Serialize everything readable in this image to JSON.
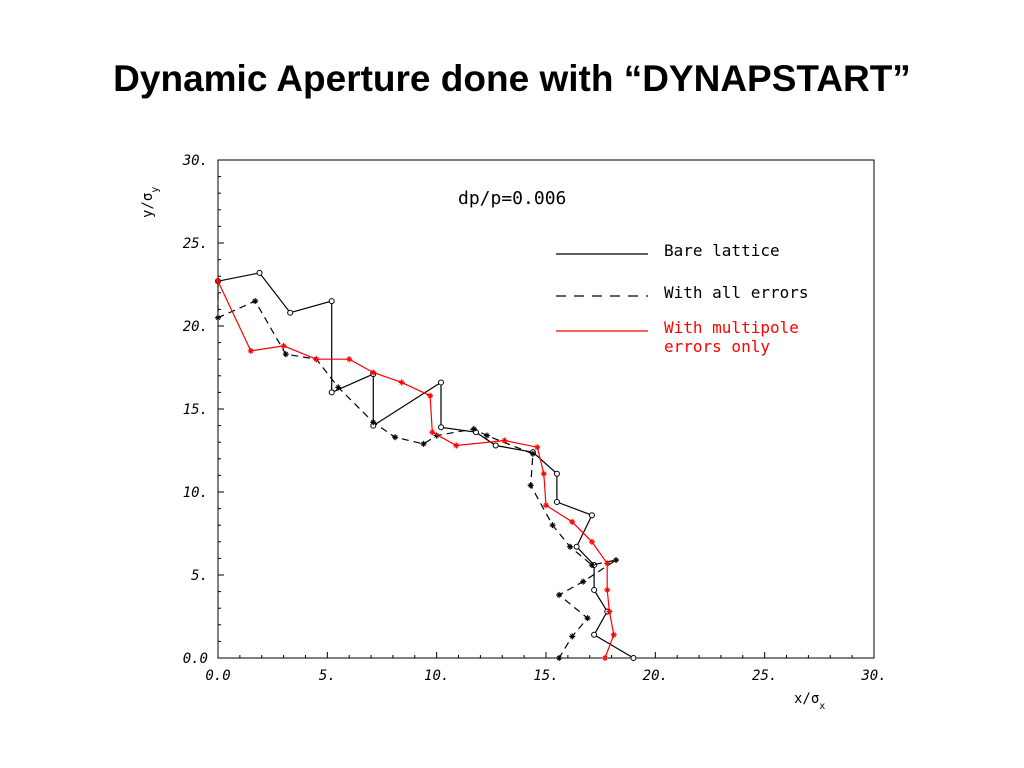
{
  "slide": {
    "title": "Dynamic Aperture done with “DYNAPSTART”"
  },
  "colors": {
    "bare": "#000000",
    "errors": "#000000",
    "multipole": "#ff0000",
    "axes": "#000000"
  },
  "chart_data": {
    "type": "line",
    "title": "",
    "annotation": "dp/p=0.006",
    "xlabel": "x/σx",
    "ylabel": "y/σy",
    "xlim": [
      0,
      30
    ],
    "ylim": [
      0,
      30
    ],
    "x_ticks": [
      0,
      5,
      10,
      15,
      20,
      25,
      30
    ],
    "x_tick_labels": [
      "0.0",
      "5.",
      "10.",
      "15.",
      "20.",
      "25.",
      "30."
    ],
    "y_ticks": [
      0,
      5,
      10,
      15,
      20,
      25,
      30
    ],
    "y_tick_labels": [
      "0.0",
      "5.",
      "10.",
      "15.",
      "20.",
      "25.",
      "30."
    ],
    "grid": false,
    "legend_position": "top-right",
    "series": [
      {
        "name": "Bare lattice",
        "style": "solid",
        "color": "#000000",
        "marker": "circle",
        "points": [
          [
            0.0,
            22.7
          ],
          [
            1.9,
            23.2
          ],
          [
            3.3,
            20.8
          ],
          [
            5.2,
            21.5
          ],
          [
            5.2,
            16.0
          ],
          [
            7.1,
            17.1
          ],
          [
            7.1,
            14.0
          ],
          [
            10.2,
            16.6
          ],
          [
            10.2,
            13.9
          ],
          [
            11.8,
            13.6
          ],
          [
            12.7,
            12.8
          ],
          [
            14.4,
            12.4
          ],
          [
            15.5,
            11.1
          ],
          [
            15.5,
            9.4
          ],
          [
            17.1,
            8.6
          ],
          [
            16.4,
            6.7
          ],
          [
            17.2,
            5.6
          ],
          [
            17.2,
            4.1
          ],
          [
            17.8,
            2.8
          ],
          [
            17.2,
            1.4
          ],
          [
            19.0,
            0.0
          ]
        ]
      },
      {
        "name": "With all errors",
        "style": "dashed",
        "color": "#000000",
        "marker": "star",
        "points": [
          [
            0.0,
            22.7
          ],
          [
            0.0,
            20.5
          ],
          [
            1.7,
            21.5
          ],
          [
            3.1,
            18.3
          ],
          [
            4.5,
            18.0
          ],
          [
            5.5,
            16.3
          ],
          [
            7.1,
            14.2
          ],
          [
            8.1,
            13.3
          ],
          [
            9.4,
            12.9
          ],
          [
            10.0,
            13.4
          ],
          [
            11.7,
            13.8
          ],
          [
            12.3,
            13.4
          ],
          [
            14.4,
            12.3
          ],
          [
            14.3,
            10.4
          ],
          [
            15.3,
            8.0
          ],
          [
            16.1,
            6.7
          ],
          [
            17.1,
            5.6
          ],
          [
            18.2,
            5.9
          ],
          [
            16.7,
            4.6
          ],
          [
            15.6,
            3.8
          ],
          [
            16.9,
            2.4
          ],
          [
            16.2,
            1.3
          ],
          [
            15.6,
            0.0
          ]
        ]
      },
      {
        "name": "With multipole errors only",
        "style": "solid",
        "color": "#ff0000",
        "marker": "star",
        "points": [
          [
            0.0,
            22.7
          ],
          [
            1.5,
            18.5
          ],
          [
            3.0,
            18.8
          ],
          [
            4.5,
            18.0
          ],
          [
            6.0,
            18.0
          ],
          [
            7.1,
            17.2
          ],
          [
            8.4,
            16.6
          ],
          [
            9.7,
            15.8
          ],
          [
            9.8,
            13.6
          ],
          [
            10.9,
            12.8
          ],
          [
            13.1,
            13.1
          ],
          [
            14.6,
            12.7
          ],
          [
            14.9,
            11.1
          ],
          [
            15.0,
            9.2
          ],
          [
            16.2,
            8.2
          ],
          [
            17.1,
            7.0
          ],
          [
            17.8,
            5.7
          ],
          [
            17.8,
            4.1
          ],
          [
            17.9,
            2.8
          ],
          [
            18.1,
            1.4
          ],
          [
            17.7,
            0.0
          ]
        ]
      }
    ]
  }
}
